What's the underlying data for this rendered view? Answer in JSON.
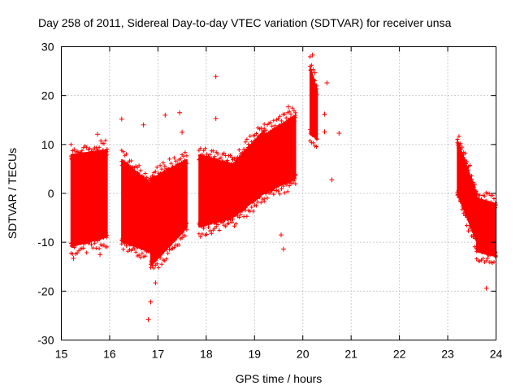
{
  "chart_data": {
    "type": "scatter",
    "title": "Day 258 of 2011, Sidereal Day-to-day VTEC variation (SDTVAR) for receiver unsa",
    "xlabel": "GPS time / hours",
    "ylabel": "SDTVAR / TECUs",
    "xlim": [
      15,
      24
    ],
    "ylim": [
      -30,
      30
    ],
    "xticks": [
      15,
      16,
      17,
      18,
      19,
      20,
      21,
      22,
      23,
      24
    ],
    "yticks": [
      -30,
      -20,
      -10,
      0,
      10,
      20,
      30
    ],
    "grid": true,
    "series_color": "#ff0000",
    "marker": "+",
    "point_bands": [
      {
        "x0": 15.2,
        "x1": 15.95,
        "lo0": -11,
        "lo1": -9,
        "hi0": 8,
        "hi1": 9
      },
      {
        "x0": 16.25,
        "x1": 16.85,
        "lo0": -10,
        "lo1": -12,
        "hi0": 7,
        "hi1": 2
      },
      {
        "x0": 16.85,
        "x1": 17.6,
        "lo0": -15,
        "lo1": -7,
        "hi0": 3,
        "hi1": 7
      },
      {
        "x0": 17.85,
        "x1": 18.55,
        "lo0": -7,
        "lo1": -5,
        "hi0": 8,
        "hi1": 6
      },
      {
        "x0": 18.55,
        "x1": 19.2,
        "lo0": -5,
        "lo1": 0,
        "hi0": 6,
        "hi1": 13
      },
      {
        "x0": 19.2,
        "x1": 19.85,
        "lo0": 0,
        "lo1": 3,
        "hi0": 12,
        "hi1": 16
      },
      {
        "x0": 20.15,
        "x1": 20.3,
        "lo0": 12,
        "lo1": 11,
        "hi0": 26,
        "hi1": 21
      },
      {
        "x0": 23.2,
        "x1": 23.6,
        "lo0": 0,
        "lo1": -10,
        "hi0": 11,
        "hi1": 0
      },
      {
        "x0": 23.6,
        "x1": 24.0,
        "lo0": -12,
        "lo1": -13,
        "hi0": -1,
        "hi1": -2
      }
    ],
    "outliers": [
      {
        "x": 15.25,
        "y": -13.3
      },
      {
        "x": 15.75,
        "y": 12.1
      },
      {
        "x": 15.8,
        "y": -12.5
      },
      {
        "x": 16.25,
        "y": 15.2
      },
      {
        "x": 16.7,
        "y": 14.0
      },
      {
        "x": 16.8,
        "y": -25.8
      },
      {
        "x": 16.85,
        "y": -22.2
      },
      {
        "x": 16.95,
        "y": -18.3
      },
      {
        "x": 17.15,
        "y": 16.0
      },
      {
        "x": 17.45,
        "y": 16.5
      },
      {
        "x": 17.5,
        "y": 12.5
      },
      {
        "x": 18.2,
        "y": 23.9
      },
      {
        "x": 18.2,
        "y": 15.3
      },
      {
        "x": 19.6,
        "y": -11.4
      },
      {
        "x": 19.55,
        "y": -8.5
      },
      {
        "x": 19.7,
        "y": 17.7
      },
      {
        "x": 20.2,
        "y": 28.3
      },
      {
        "x": 20.25,
        "y": 24.7
      },
      {
        "x": 20.5,
        "y": 22.6
      },
      {
        "x": 20.45,
        "y": 16.2
      },
      {
        "x": 20.45,
        "y": 12.6
      },
      {
        "x": 20.6,
        "y": 2.8
      },
      {
        "x": 20.75,
        "y": 12.3
      },
      {
        "x": 23.8,
        "y": -19.4
      }
    ]
  }
}
